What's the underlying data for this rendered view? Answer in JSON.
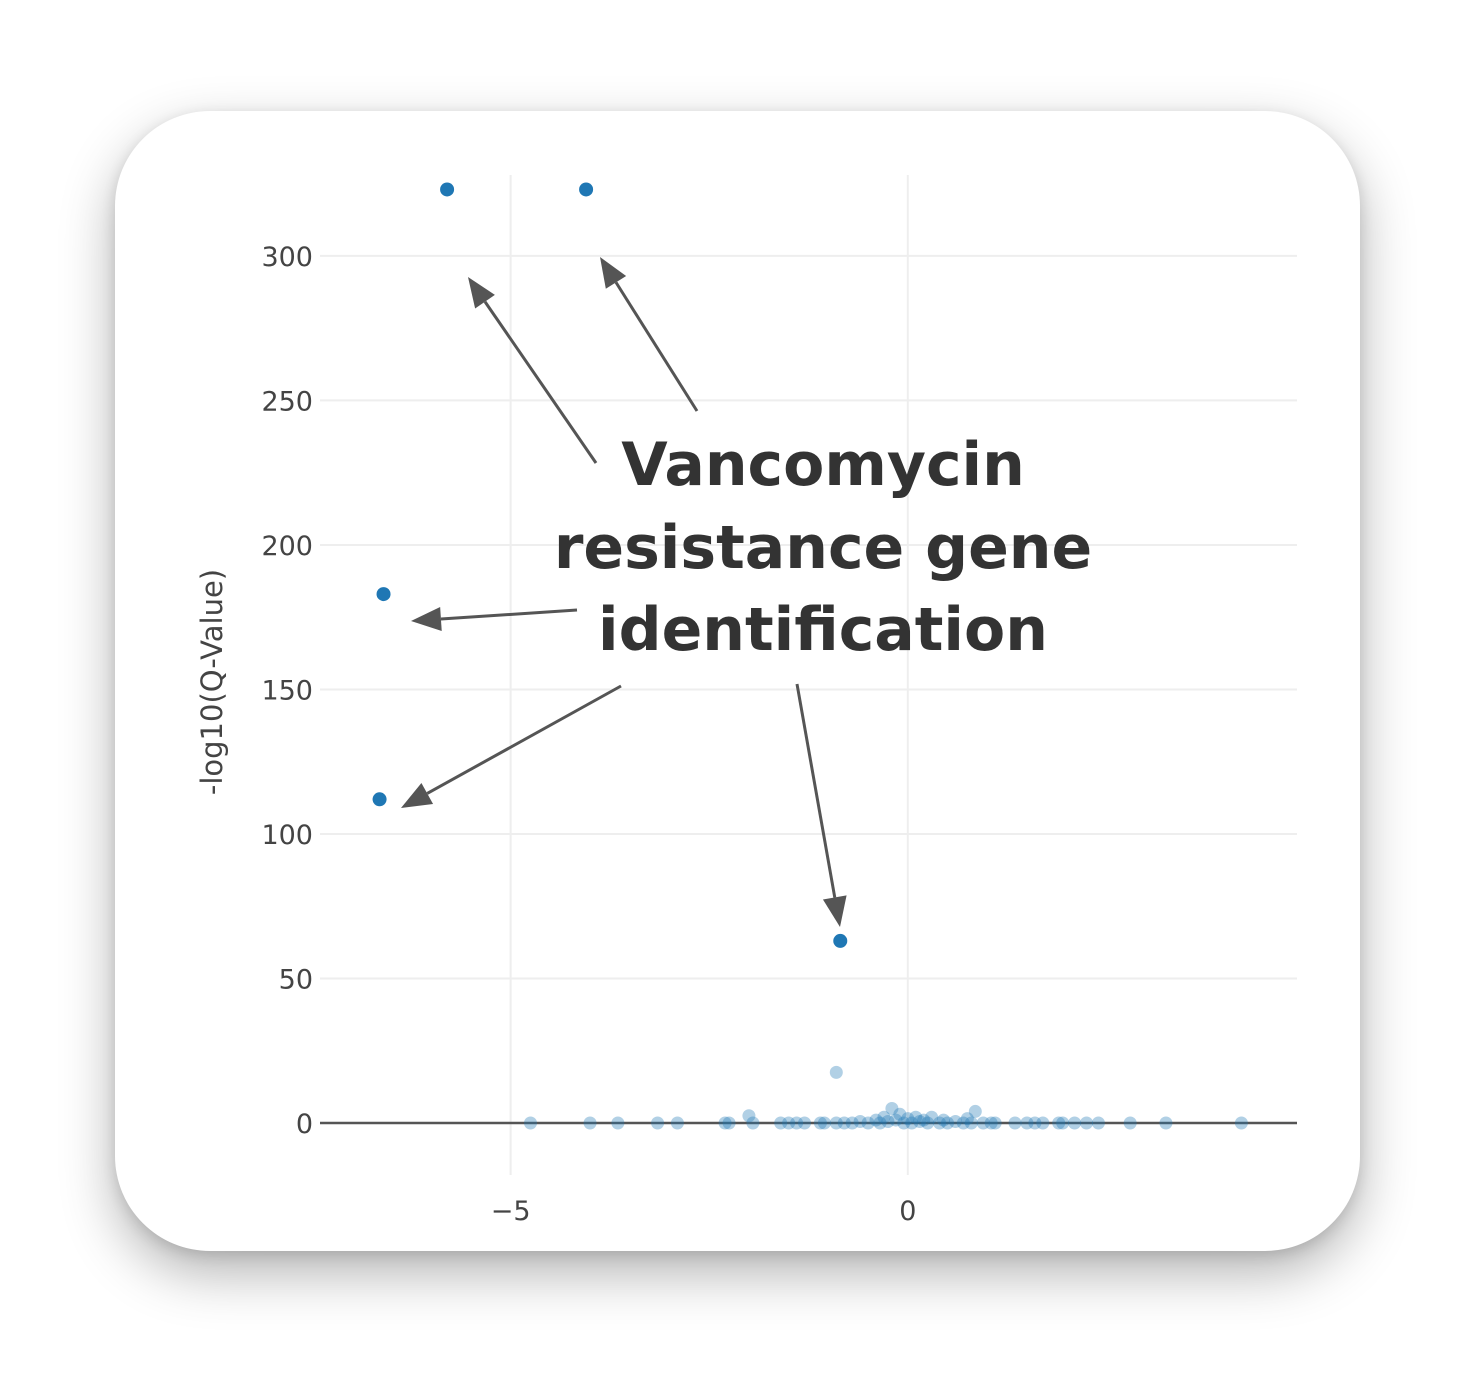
{
  "chart_data": {
    "type": "scatter",
    "title": "",
    "xlabel": "",
    "ylabel": "-log10(Q-Value)",
    "xlim": [
      -7.4,
      4.9
    ],
    "ylim": [
      -18,
      328
    ],
    "x_ticks": [
      -5,
      0
    ],
    "x_tick_labels": [
      "−5",
      "0"
    ],
    "y_ticks": [
      0,
      50,
      100,
      150,
      200,
      250,
      300
    ],
    "y_tick_labels": [
      "0",
      "50",
      "100",
      "150",
      "200",
      "250",
      "300"
    ],
    "grid": true,
    "zero_line": true,
    "marker_color": "#1f77b4",
    "highlighted_points": [
      {
        "x": -5.8,
        "y": 323
      },
      {
        "x": -4.05,
        "y": 323
      },
      {
        "x": -6.6,
        "y": 183
      },
      {
        "x": -6.65,
        "y": 112
      },
      {
        "x": -0.85,
        "y": 63
      }
    ],
    "background_points": [
      {
        "x": -0.9,
        "y": 17.5
      },
      {
        "x": -4.75,
        "y": 0
      },
      {
        "x": -4.0,
        "y": 0
      },
      {
        "x": -3.65,
        "y": 0
      },
      {
        "x": -3.15,
        "y": 0
      },
      {
        "x": -2.9,
        "y": 0
      },
      {
        "x": -2.3,
        "y": 0
      },
      {
        "x": -2.25,
        "y": 0
      },
      {
        "x": -2.0,
        "y": 2.5
      },
      {
        "x": -1.95,
        "y": 0
      },
      {
        "x": -1.6,
        "y": 0
      },
      {
        "x": -1.5,
        "y": 0
      },
      {
        "x": -1.4,
        "y": 0
      },
      {
        "x": -1.3,
        "y": 0
      },
      {
        "x": -1.1,
        "y": 0
      },
      {
        "x": -1.05,
        "y": 0
      },
      {
        "x": -0.9,
        "y": 0
      },
      {
        "x": -0.8,
        "y": 0
      },
      {
        "x": -0.7,
        "y": 0
      },
      {
        "x": -0.6,
        "y": 0.5
      },
      {
        "x": -0.5,
        "y": 0
      },
      {
        "x": -0.4,
        "y": 1
      },
      {
        "x": -0.35,
        "y": 0
      },
      {
        "x": -0.3,
        "y": 2
      },
      {
        "x": -0.25,
        "y": 0.5
      },
      {
        "x": -0.2,
        "y": 5
      },
      {
        "x": -0.15,
        "y": 1
      },
      {
        "x": -0.1,
        "y": 3
      },
      {
        "x": -0.05,
        "y": 0
      },
      {
        "x": 0,
        "y": 1.5
      },
      {
        "x": 0.05,
        "y": 0
      },
      {
        "x": 0.1,
        "y": 2
      },
      {
        "x": 0.15,
        "y": 0.5
      },
      {
        "x": 0.2,
        "y": 1
      },
      {
        "x": 0.25,
        "y": 0
      },
      {
        "x": 0.3,
        "y": 2
      },
      {
        "x": 0.4,
        "y": 0
      },
      {
        "x": 0.45,
        "y": 1
      },
      {
        "x": 0.5,
        "y": 0
      },
      {
        "x": 0.6,
        "y": 0.5
      },
      {
        "x": 0.7,
        "y": 0
      },
      {
        "x": 0.75,
        "y": 1.5
      },
      {
        "x": 0.8,
        "y": 0
      },
      {
        "x": 0.85,
        "y": 4
      },
      {
        "x": 0.95,
        "y": 0
      },
      {
        "x": 1.05,
        "y": 0
      },
      {
        "x": 1.1,
        "y": 0
      },
      {
        "x": 1.35,
        "y": 0
      },
      {
        "x": 1.5,
        "y": 0
      },
      {
        "x": 1.6,
        "y": 0
      },
      {
        "x": 1.7,
        "y": 0
      },
      {
        "x": 1.9,
        "y": 0
      },
      {
        "x": 1.95,
        "y": 0
      },
      {
        "x": 2.1,
        "y": 0
      },
      {
        "x": 2.25,
        "y": 0
      },
      {
        "x": 2.4,
        "y": 0
      },
      {
        "x": 2.8,
        "y": 0
      },
      {
        "x": 3.25,
        "y": 0
      },
      {
        "x": 4.2,
        "y": 0
      }
    ],
    "annotations": [
      "Vancomycin",
      "resistance gene",
      "identification"
    ]
  }
}
